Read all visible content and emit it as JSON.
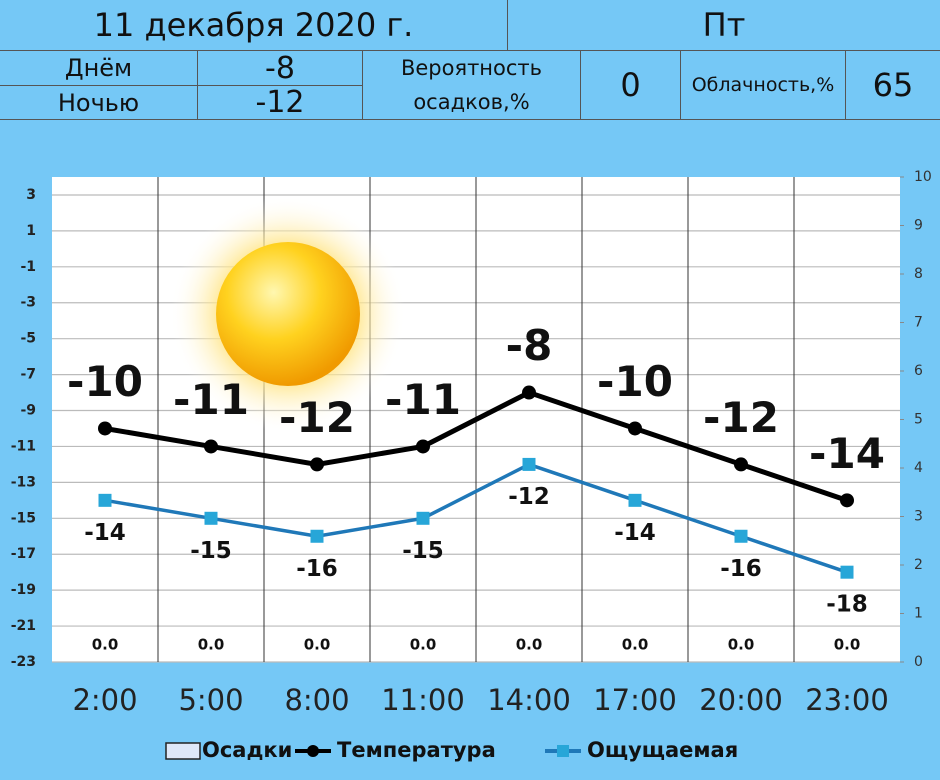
{
  "header": {
    "date": "11 декабря 2020 г.",
    "weekday": "Пт",
    "day_label": "Днём",
    "day_value": -8,
    "night_label": "Ночью",
    "night_value": -12,
    "precip_label": "Вероятность осадков,%",
    "precip_value": 0,
    "cloud_label": "Облачность,%",
    "cloud_value": 65
  },
  "chart_data": {
    "type": "line",
    "categories": [
      "2:00",
      "5:00",
      "8:00",
      "11:00",
      "14:00",
      "17:00",
      "20:00",
      "23:00"
    ],
    "series": [
      {
        "name": "Осадки",
        "type": "bar",
        "axis": "y2",
        "color": "#dfe8f8",
        "values": [
          0,
          0,
          0,
          0,
          0,
          0,
          0,
          0
        ],
        "value_labels": [
          "0.0",
          "0.0",
          "0.0",
          "0.0",
          "0.0",
          "0.0",
          "0.0",
          "0.0"
        ]
      },
      {
        "name": "Температура",
        "color": "#000000",
        "values": [
          -10,
          -11,
          -12,
          -11,
          -8,
          -10,
          -12,
          -14
        ]
      },
      {
        "name": "Ощущаемая",
        "color": "#1f78b8",
        "marker_color": "#27a6d8",
        "values": [
          -14,
          -15,
          -16,
          -15,
          -12,
          -14,
          -16,
          -18
        ]
      }
    ],
    "ylim": [
      -23,
      4
    ],
    "yticks": [
      3,
      1,
      -1,
      -3,
      -5,
      -7,
      -9,
      -11,
      -13,
      -15,
      -17,
      -19,
      -21,
      -23
    ],
    "y2lim": [
      0,
      10
    ],
    "y2ticks": [
      0,
      1,
      2,
      3,
      4,
      5,
      6,
      7,
      8,
      9,
      10
    ],
    "grid": true
  }
}
